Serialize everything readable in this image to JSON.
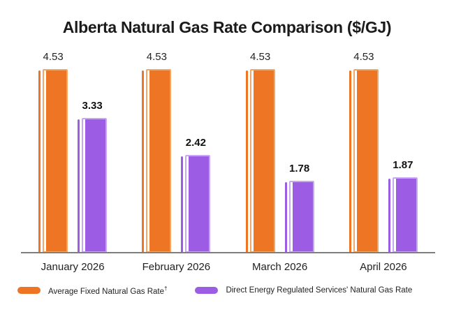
{
  "title": "Alberta Natural Gas Rate Comparison ($/GJ)",
  "chart_data": {
    "type": "bar",
    "title": "Alberta Natural Gas Rate Comparison ($/GJ)",
    "categories": [
      "January 2026",
      "February 2026",
      "March 2026",
      "April 2026"
    ],
    "series": [
      {
        "name": "Average Fixed Natural Gas Rate",
        "footnote_mark": "†",
        "color": "#ED7524",
        "light_color": "#F4A765",
        "values": [
          4.53,
          4.53,
          4.53,
          4.53
        ]
      },
      {
        "name": "Direct Energy Regulated Services' Natural Gas Rate",
        "footnote_mark": "",
        "color": "#9D5CE4",
        "light_color": "#C9A6F3",
        "values": [
          3.33,
          2.42,
          1.78,
          1.87
        ]
      }
    ],
    "ylim": [
      0,
      4.53
    ],
    "xlabel": "",
    "ylabel": "",
    "grid": false,
    "legend_position": "bottom",
    "value_labels_shown": true,
    "axis_color": "#7E7E7E",
    "background_color": "#FFFFFF",
    "text_color": "#1B1B1B"
  },
  "legend": {
    "items": [
      {
        "label": "Average Fixed Natural Gas Rate",
        "footnote_mark": "†",
        "color": "#ED7524"
      },
      {
        "label": "Direct Energy Regulated Services' Natural Gas Rate",
        "footnote_mark": "",
        "color": "#9D5CE4"
      }
    ]
  }
}
